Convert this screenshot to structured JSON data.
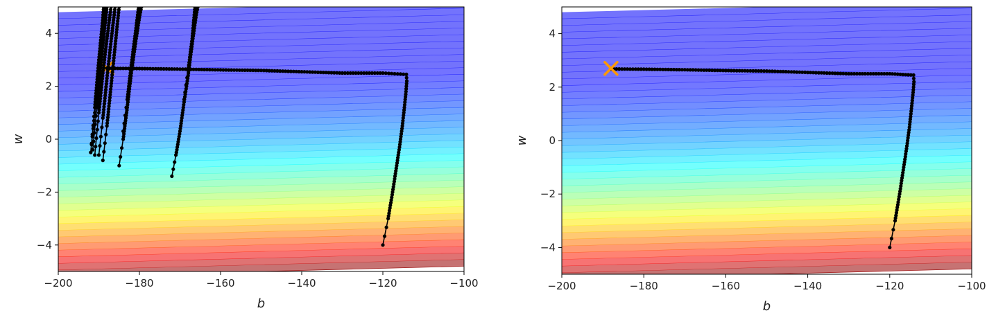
{
  "chart_data": [
    {
      "type": "contour",
      "title": "",
      "xlabel": "b",
      "ylabel": "w",
      "xlim": [
        -200,
        -100
      ],
      "ylim": [
        -5,
        5
      ],
      "xticks": [
        -200,
        -180,
        -160,
        -140,
        -120,
        -100
      ],
      "yticks": [
        -4,
        -2,
        0,
        2,
        4
      ],
      "xtick_labels": [
        "−200",
        "−180",
        "−160",
        "−140",
        "−120",
        "−100"
      ],
      "ytick_labels": [
        "−4",
        "−2",
        "0",
        "2",
        "4"
      ],
      "grid": false,
      "colormap": "jet",
      "contour_levels": 40,
      "minimum": {
        "b": -188,
        "w": 2.7,
        "marker": "x",
        "color": "#ff9900"
      },
      "series": [
        {
          "points": [
            [
              -120,
              -4
            ],
            [
              -118.7,
              -3
            ],
            [
              -117.6,
              -2
            ],
            [
              -116.6,
              -1
            ],
            [
              -115.9,
              -0.3
            ],
            [
              -115.2,
              0.5
            ],
            [
              -114.7,
              1.2
            ],
            [
              -114.3,
              1.8
            ],
            [
              -114.1,
              2.2
            ],
            [
              -114.2,
              2.45
            ],
            [
              -120,
              2.5
            ],
            [
              -130,
              2.5
            ],
            [
              -140,
              2.55
            ],
            [
              -150,
              2.6
            ],
            [
              -160,
              2.62
            ],
            [
              -170,
              2.65
            ],
            [
              -180,
              2.67
            ],
            [
              -188,
              2.68
            ]
          ]
        },
        {
          "points": [
            [
              -172,
              -1.4
            ],
            [
              -171,
              -0.6
            ],
            [
              -170,
              0.3
            ],
            [
              -169,
              1.4
            ],
            [
              -168,
              2.4
            ],
            [
              -167,
              3.6
            ],
            [
              -166,
              4.7
            ],
            [
              -165.6,
              5.0
            ]
          ]
        },
        {
          "points": [
            [
              -169,
              1.5
            ],
            [
              -168,
              2.6
            ],
            [
              -167,
              3.8
            ],
            [
              -166.3,
              5.0
            ]
          ]
        },
        {
          "points": [
            [
              -185,
              -1.0
            ],
            [
              -184,
              0
            ],
            [
              -183,
              1.2
            ],
            [
              -182,
              2.5
            ],
            [
              -181,
              3.6
            ],
            [
              -180,
              4.6
            ],
            [
              -179.5,
              5.0
            ]
          ]
        },
        {
          "points": [
            [
              -184,
              0.3
            ],
            [
              -183,
              1.5
            ],
            [
              -182,
              2.8
            ],
            [
              -181,
              4.0
            ],
            [
              -180.2,
              5.0
            ]
          ]
        },
        {
          "points": [
            [
              -189,
              -0.8
            ],
            [
              -188,
              0.5
            ],
            [
              -187,
              2.0
            ],
            [
              -186,
              3.5
            ],
            [
              -185,
              5.0
            ]
          ]
        },
        {
          "points": [
            [
              -190,
              -0.6
            ],
            [
              -189,
              0.8
            ],
            [
              -188,
              2.3
            ],
            [
              -187,
              3.7
            ],
            [
              -186,
              5.0
            ]
          ]
        },
        {
          "points": [
            [
              -191,
              -0.6
            ],
            [
              -190,
              1.0
            ],
            [
              -189,
              2.5
            ],
            [
              -188,
              3.8
            ],
            [
              -187,
              5.0
            ]
          ]
        },
        {
          "points": [
            [
              -191.5,
              -0.4
            ],
            [
              -190.5,
              1.2
            ],
            [
              -189.5,
              2.8
            ],
            [
              -188.5,
              4.3
            ],
            [
              -188,
              5.0
            ]
          ]
        },
        {
          "points": [
            [
              -192,
              -0.5
            ],
            [
              -191,
              1.2
            ],
            [
              -190,
              3.0
            ],
            [
              -189,
              4.6
            ],
            [
              -188.8,
              5.0
            ]
          ]
        },
        {
          "points": [
            [
              -191.8,
              -0.2
            ],
            [
              -190.6,
              1.6
            ],
            [
              -189.5,
              3.4
            ],
            [
              -188.5,
              5.0
            ]
          ]
        }
      ]
    },
    {
      "type": "contour",
      "title": "",
      "xlabel": "b",
      "ylabel": "w",
      "xlim": [
        -200,
        -100
      ],
      "ylim": [
        -5,
        5
      ],
      "xticks": [
        -200,
        -180,
        -160,
        -140,
        -120,
        -100
      ],
      "yticks": [
        -4,
        -2,
        0,
        2,
        4
      ],
      "xtick_labels": [
        "−200",
        "−180",
        "−160",
        "−140",
        "−120",
        "−100"
      ],
      "ytick_labels": [
        "−4",
        "−2",
        "0",
        "2",
        "4"
      ],
      "grid": false,
      "colormap": "jet",
      "contour_levels": 40,
      "minimum": {
        "b": -188,
        "w": 2.7,
        "marker": "x",
        "color": "#ff9900"
      },
      "series": [
        {
          "points": [
            [
              -120,
              -4
            ],
            [
              -118.7,
              -3
            ],
            [
              -117.6,
              -2
            ],
            [
              -116.6,
              -1
            ],
            [
              -115.9,
              -0.3
            ],
            [
              -115.2,
              0.5
            ],
            [
              -114.7,
              1.2
            ],
            [
              -114.3,
              1.8
            ],
            [
              -114.1,
              2.2
            ],
            [
              -114.2,
              2.45
            ],
            [
              -120,
              2.5
            ],
            [
              -130,
              2.5
            ],
            [
              -140,
              2.55
            ],
            [
              -150,
              2.6
            ],
            [
              -160,
              2.62
            ],
            [
              -170,
              2.65
            ],
            [
              -180,
              2.67
            ],
            [
              -188,
              2.68
            ]
          ]
        }
      ]
    }
  ]
}
